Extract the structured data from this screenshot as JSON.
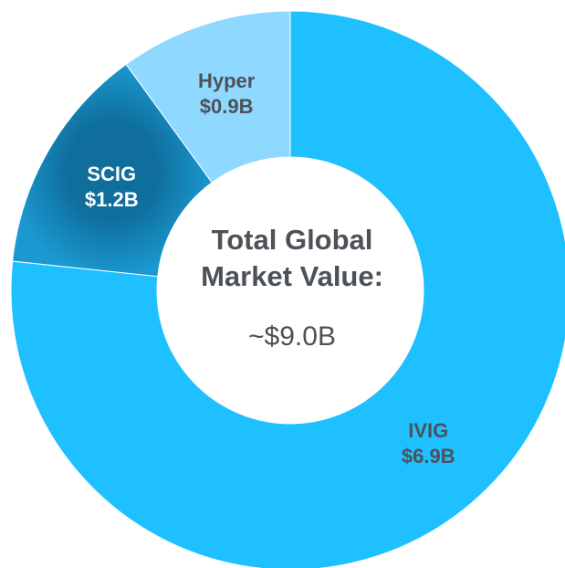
{
  "chart_data": {
    "type": "donut",
    "categories": [
      "IVIG",
      "SCIG",
      "Hyper"
    ],
    "values": [
      6.9,
      1.2,
      0.9
    ],
    "value_labels": [
      "$6.9B",
      "$1.2B",
      "$0.9B"
    ],
    "colors": [
      "#1ec0ff",
      "#1686bb",
      "#8fd8ff"
    ],
    "label_colors": [
      "#4d5258",
      "#ffffff",
      "#4d5258"
    ],
    "center_title": [
      "Total Global",
      "Market Value:"
    ],
    "center_value": "~$9.0B"
  }
}
